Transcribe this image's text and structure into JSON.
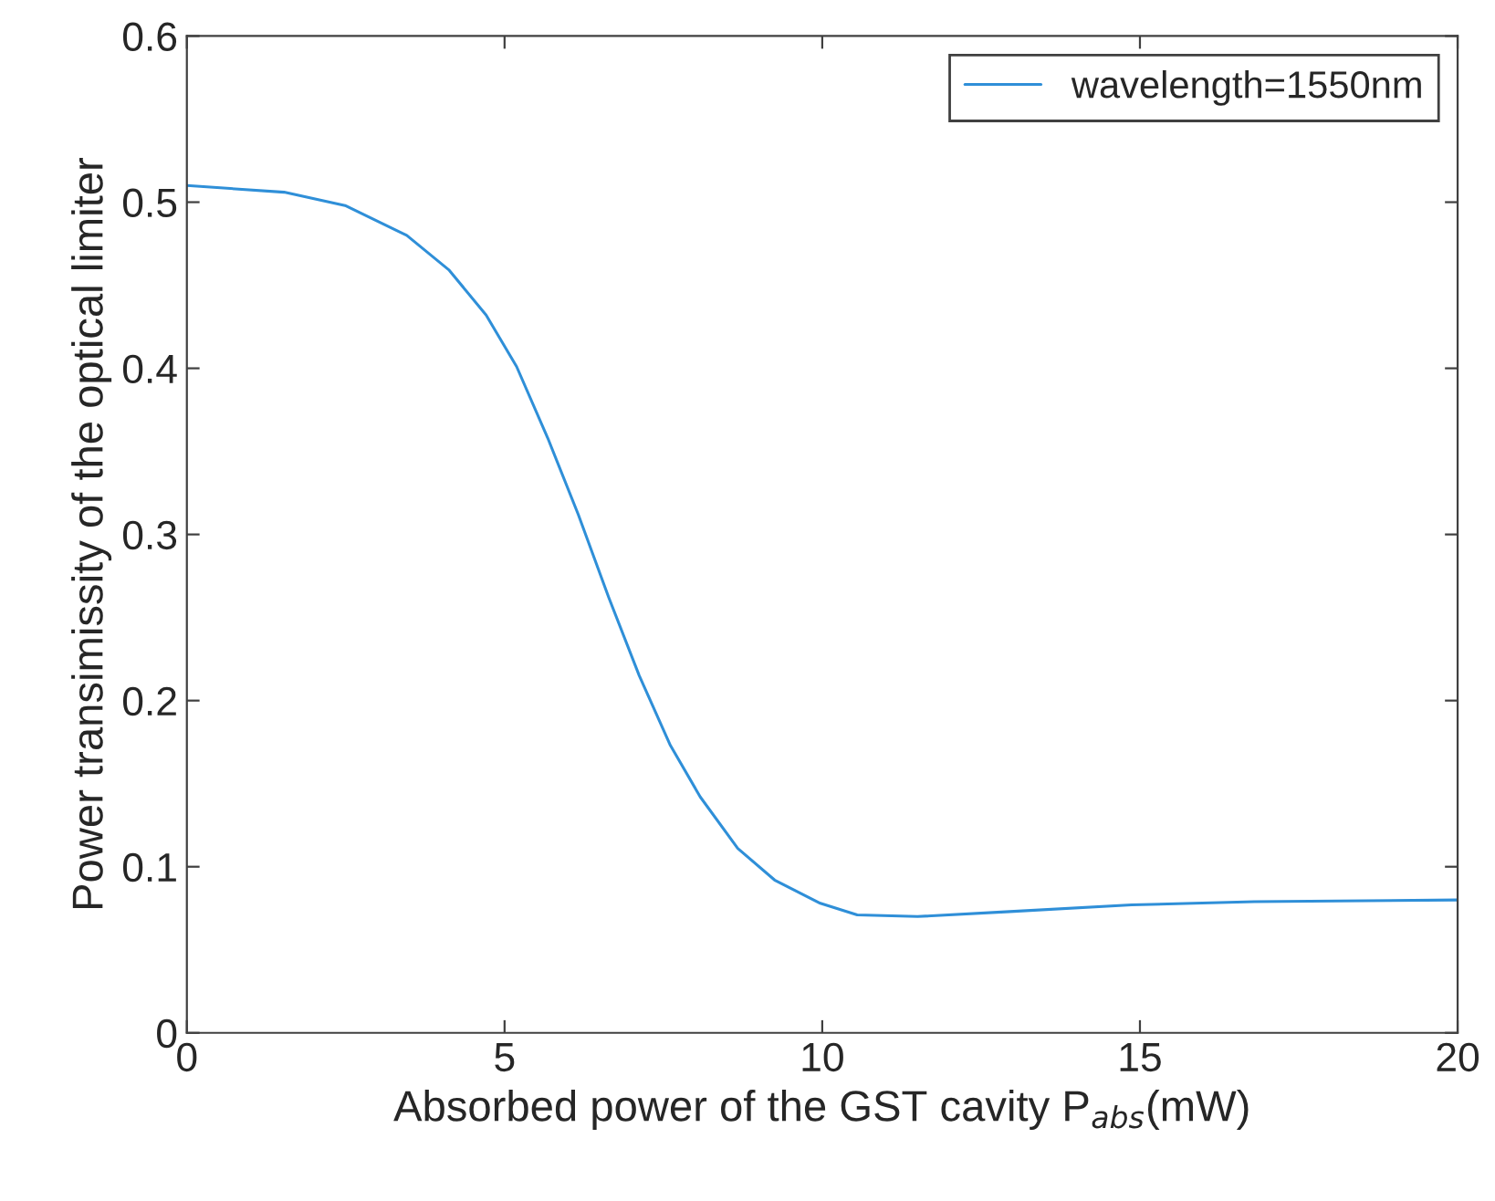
{
  "chart_data": {
    "type": "line",
    "xlabel": "Absorbed power of the GST cavity P$_{abs}$(mW)",
    "ylabel": "Power transimissity of the optical limiter",
    "x": [
      0,
      1.53,
      2.49,
      3.46,
      4.13,
      4.71,
      5.19,
      5.68,
      6.16,
      6.64,
      7.12,
      7.61,
      8.08,
      8.67,
      9.25,
      9.97,
      10.55,
      11.5,
      12.95,
      14.87,
      16.8,
      20
    ],
    "series": [
      {
        "name": "wavelength=1550nm",
        "color": "#2f8fd8",
        "values": [
          0.51,
          0.506,
          0.498,
          0.48,
          0.459,
          0.432,
          0.401,
          0.358,
          0.312,
          0.262,
          0.215,
          0.173,
          0.142,
          0.111,
          0.092,
          0.078,
          0.071,
          0.07,
          0.073,
          0.077,
          0.079,
          0.08
        ]
      }
    ],
    "xlim": [
      0,
      20
    ],
    "xticks": [
      0,
      5,
      10,
      15,
      20
    ],
    "ylim": [
      0,
      0.6
    ],
    "yticks": [
      0,
      0.1,
      0.2,
      0.3,
      0.4,
      0.5,
      0.6
    ],
    "grid": false,
    "legend": "top right",
    "marker": "none",
    "line_style": "solid"
  }
}
